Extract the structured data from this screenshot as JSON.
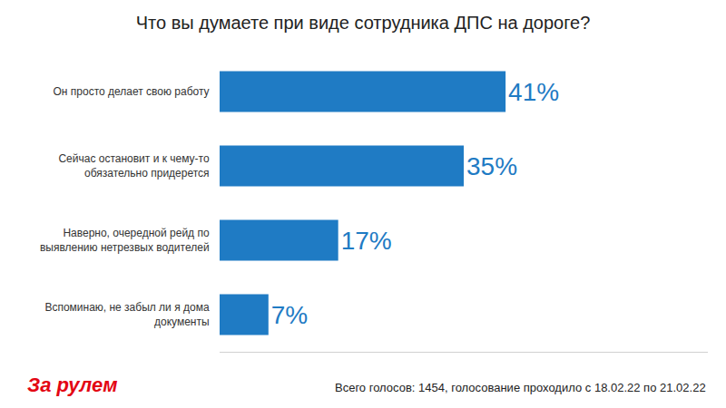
{
  "chart_data": {
    "type": "bar",
    "orientation": "horizontal",
    "title": "Что вы думаете при виде сотрудника ДПС на дороге?",
    "categories": [
      "Он просто делает свою работу",
      "Сейчас остановит и к чему-то обязательно придерется",
      "Наверно, очередной рейд по выявлению нетрезвых водителей",
      "Вспоминаю, не забыл ли я дома документы"
    ],
    "values": [
      41,
      35,
      17,
      7
    ],
    "value_labels": [
      "41%",
      "35%",
      "17%",
      "7%"
    ],
    "data_labels": true,
    "color": "#1f7bc4",
    "xlim": [
      0,
      70
    ],
    "tick_labels": "y",
    "grid": false,
    "annotations": [
      "За рулем",
      "Всего голосов: 1454, голосование проходило с 18.02.22 по 21.02.22"
    ]
  }
}
